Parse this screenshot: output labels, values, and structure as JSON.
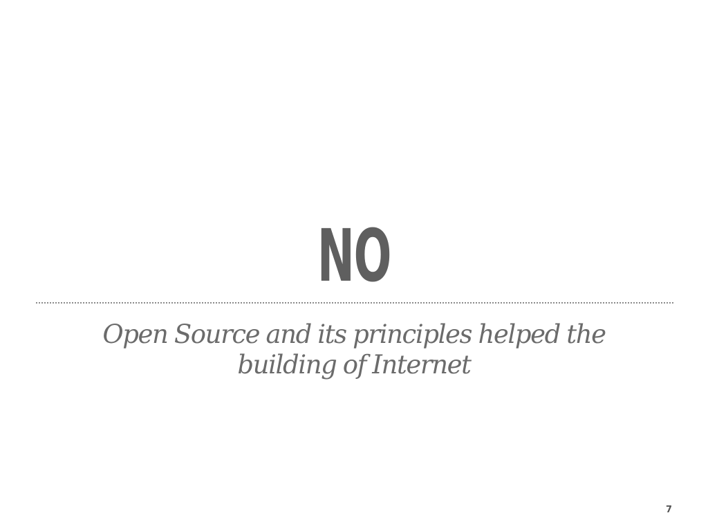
{
  "slide": {
    "title": "NO",
    "subtitle": "Open Source and its principles helped the building of Internet",
    "page_number": "7"
  },
  "colors": {
    "background": "#ffffff",
    "title": "#5f5f5f",
    "subtitle": "#6b6b6b",
    "divider": "#8a8a8a"
  }
}
